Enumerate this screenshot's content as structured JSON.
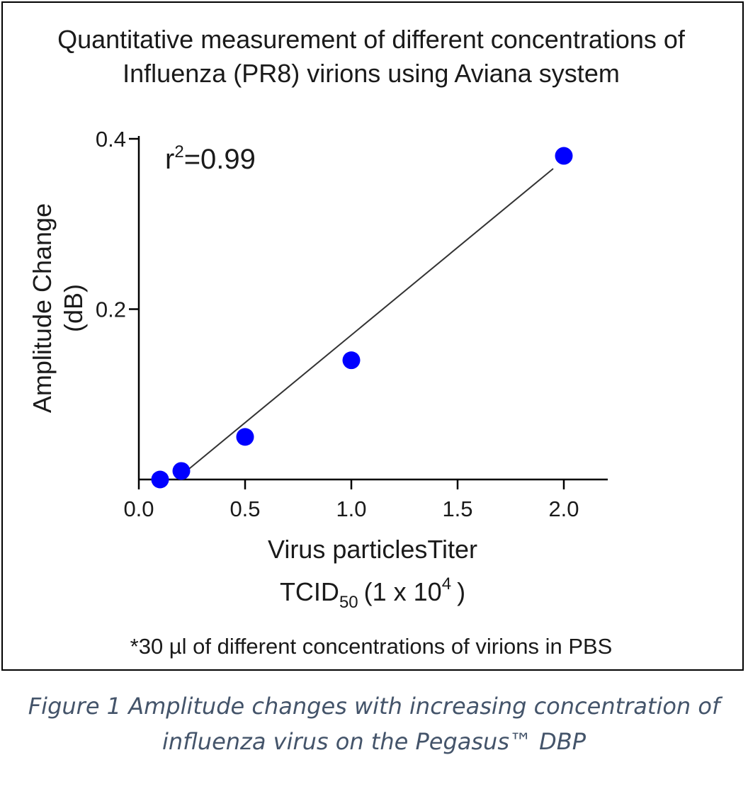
{
  "chart_data": {
    "type": "scatter",
    "title_line1": "Quantitative measurement of different concentrations of",
    "title_line2": "Influenza (PR8) virions using Aviana system",
    "ylabel_line1": "Amplitude Change",
    "ylabel_line2": "(dB)",
    "xlabel_line1": "Virus particlesTiter",
    "xlabel_line2_prefix": "TCID",
    "xlabel_line2_sub": "50",
    "xlabel_line2_mid": "(1 x 10",
    "xlabel_line2_sup": "4",
    "xlabel_line2_suffix": ")",
    "annotation_base": "r",
    "annotation_sup": "2",
    "annotation_rest": "=0.99",
    "x_ticks": [
      0.0,
      0.5,
      1.0,
      1.5,
      2.0
    ],
    "x_tick_labels": [
      "0.0",
      "0.5",
      "1.0",
      "1.5",
      "2.0"
    ],
    "y_ticks": [
      0.2,
      0.4
    ],
    "y_tick_labels": [
      "0.2",
      "0.4"
    ],
    "xlim": [
      0.0,
      2.2
    ],
    "ylim": [
      0.0,
      0.4
    ],
    "points": [
      {
        "x": 0.1,
        "y": 0.0
      },
      {
        "x": 0.2,
        "y": 0.01
      },
      {
        "x": 0.5,
        "y": 0.05
      },
      {
        "x": 1.0,
        "y": 0.14
      },
      {
        "x": 2.0,
        "y": 0.38
      }
    ],
    "fit_line": {
      "x_start": 0.2,
      "y_start": 0.005,
      "x_end": 1.95,
      "y_end": 0.365
    },
    "point_color": "#0000ff",
    "line_color": "#333333"
  },
  "footnote": "*30 µl of different concentrations of virions in PBS",
  "caption_line1": "Figure 1 Amplitude changes with increasing concentration of",
  "caption_line2": "influenza virus on the Pegasus™ DBP"
}
